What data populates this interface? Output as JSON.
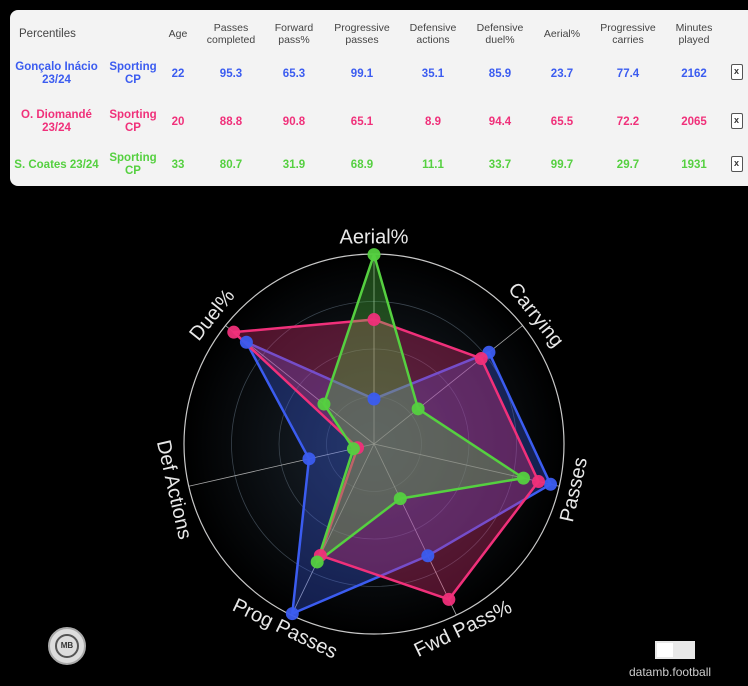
{
  "table": {
    "headers": [
      "Percentiles",
      "Age",
      "Passes completed",
      "Forward pass%",
      "Progressive passes",
      "Defensive actions",
      "Defensive duel%",
      "Aerial%",
      "Progressive carries",
      "Minutes played"
    ],
    "rows": [
      {
        "player": "Gonçalo Inácio 23/24",
        "team": "Sporting CP",
        "age": "22",
        "passes_completed": "95.3",
        "forward_pass_pct": "65.3",
        "progressive_passes": "99.1",
        "defensive_actions": "35.1",
        "defensive_duel_pct": "85.9",
        "aerial_pct": "23.7",
        "progressive_carries": "77.4",
        "minutes": "2162",
        "remove": "x",
        "color": "#3b5cf0"
      },
      {
        "player": "O. Diomandé 23/24",
        "team": "Sporting CP",
        "age": "20",
        "passes_completed": "88.8",
        "forward_pass_pct": "90.8",
        "progressive_passes": "65.1",
        "defensive_actions": "8.9",
        "defensive_duel_pct": "94.4",
        "aerial_pct": "65.5",
        "progressive_carries": "72.2",
        "minutes": "2065",
        "remove": "x",
        "color": "#f0307a"
      },
      {
        "player": "S. Coates 23/24",
        "team": "Sporting CP",
        "age": "33",
        "passes_completed": "80.7",
        "forward_pass_pct": "31.9",
        "progressive_passes": "68.9",
        "defensive_actions": "11.1",
        "defensive_duel_pct": "33.7",
        "aerial_pct": "99.7",
        "progressive_carries": "29.7",
        "minutes": "1931",
        "remove": "x",
        "color": "#55d040"
      }
    ]
  },
  "chart_data": {
    "type": "radar",
    "axes": [
      "Aerial%",
      "Carrying",
      "Passes",
      "Fwd Pass%",
      "Prog Passes",
      "Def Actions",
      "Duel%"
    ],
    "range": [
      0,
      100
    ],
    "series": [
      {
        "name": "Gonçalo Inácio 23/24",
        "color": "#3b5cf0",
        "values": [
          23.7,
          77.4,
          95.3,
          65.3,
          99.1,
          35.1,
          85.9
        ]
      },
      {
        "name": "O. Diomandé 23/24",
        "color": "#f0307a",
        "values": [
          65.5,
          72.2,
          88.8,
          90.8,
          65.1,
          8.9,
          94.4
        ]
      },
      {
        "name": "S. Coates 23/24",
        "color": "#55d040",
        "values": [
          99.7,
          29.7,
          80.7,
          31.9,
          68.9,
          11.1,
          33.7
        ]
      }
    ],
    "grid": true
  },
  "footer": {
    "logo_text": "MB",
    "brand": "datamb.football"
  }
}
